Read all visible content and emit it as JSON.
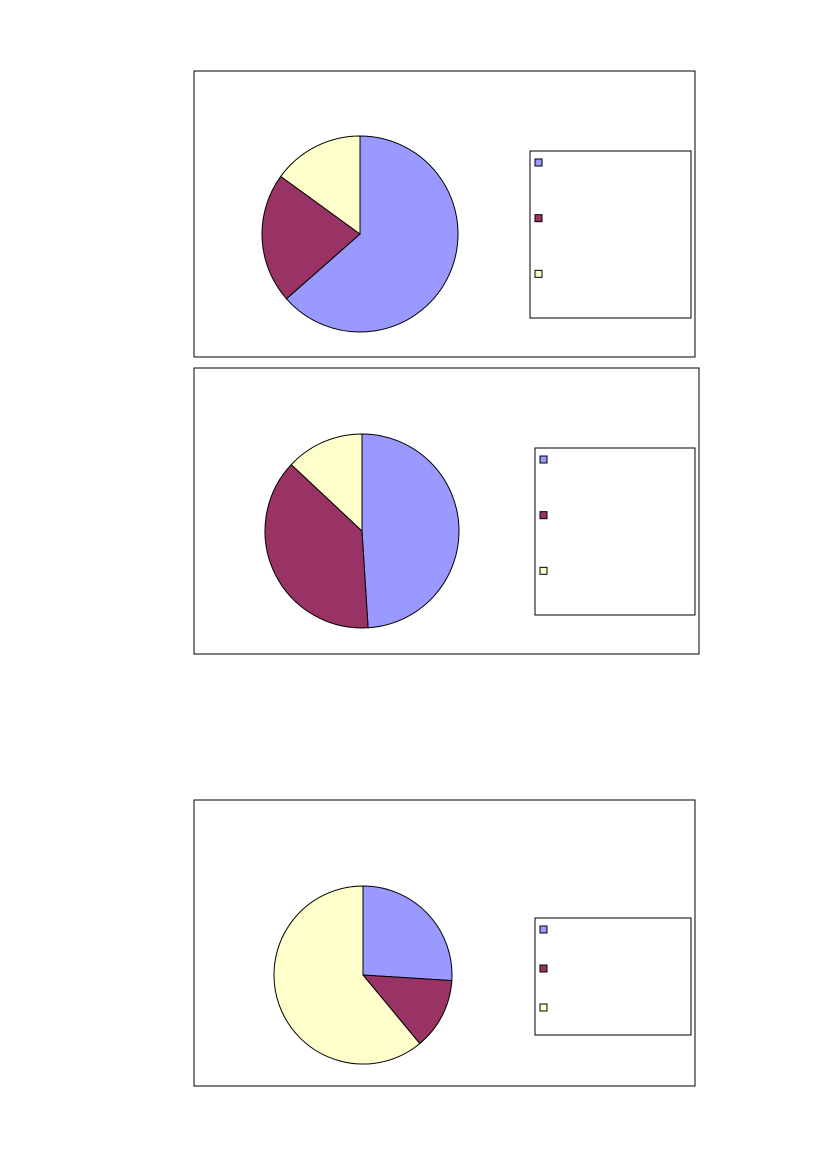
{
  "chart_data": [
    {
      "type": "pie",
      "categories": [
        null,
        null,
        null
      ],
      "values": [
        63.5,
        21.5,
        15
      ],
      "colors": [
        "#9999ff",
        "#993366",
        "#ffffcc"
      ],
      "legend": "right"
    },
    {
      "type": "pie",
      "categories": [
        null,
        null,
        null
      ],
      "values": [
        49,
        38,
        13
      ],
      "colors": [
        "#9999ff",
        "#993366",
        "#ffffcc"
      ],
      "legend": "right"
    },
    {
      "type": "pie",
      "categories": [
        null,
        null,
        null
      ],
      "values": [
        26,
        13,
        61
      ],
      "colors": [
        "#9999ff",
        "#993366",
        "#ffffcc"
      ],
      "legend": "right"
    }
  ]
}
